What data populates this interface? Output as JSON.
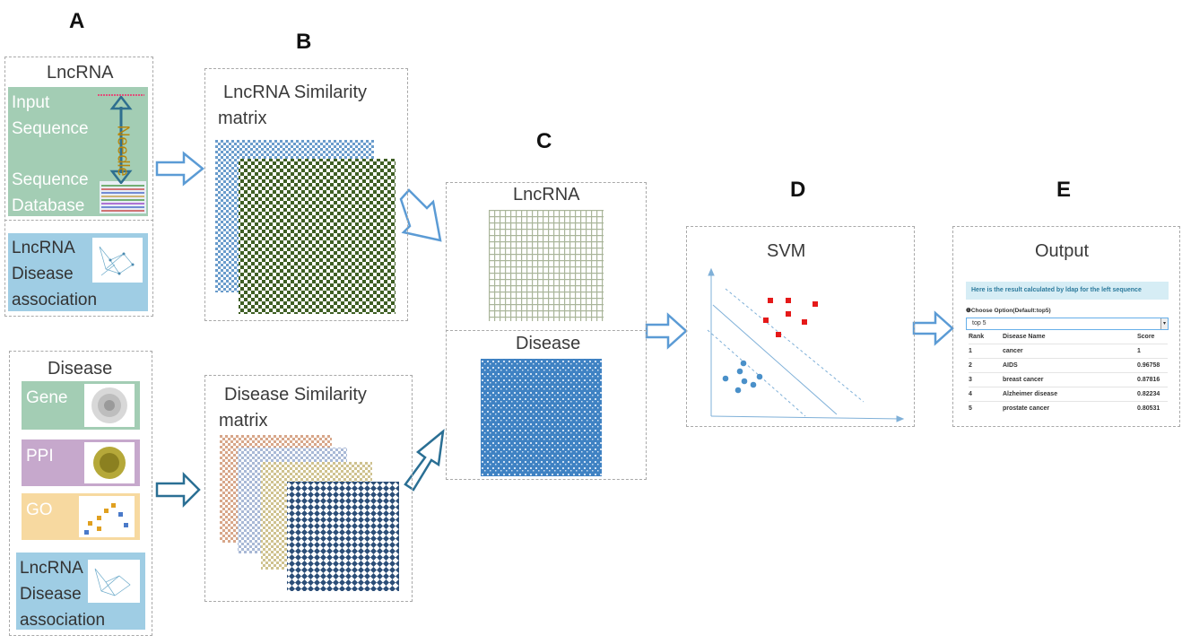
{
  "panels": {
    "a": {
      "letter": "A",
      "lncrna_title": "LncRNA",
      "input_line1": "Input",
      "input_line2": "Sequence",
      "db_line1": "Sequence",
      "db_line2": "Database",
      "needle_label": "Needle",
      "assoc_line1": "LncRNA",
      "assoc_line2": "Disease",
      "assoc_line3": "association",
      "disease_title": "Disease",
      "gene_label": "Gene",
      "ppi_label": "PPI",
      "go_label": "GO",
      "assoc2_line1": "LncRNA",
      "assoc2_line2": "Disease",
      "assoc2_line3": "association"
    },
    "b": {
      "letter": "B",
      "lnc_sim_line1": "LncRNA Similarity",
      "lnc_sim_line2": "matrix",
      "dis_sim_line1": "Disease Similarity",
      "dis_sim_line2": "matrix"
    },
    "c": {
      "letter": "C",
      "lncrna_label": "LncRNA",
      "disease_label": "Disease"
    },
    "d": {
      "letter": "D",
      "svm_label": "SVM"
    },
    "e": {
      "letter": "E",
      "output_title": "Output",
      "banner": "Here is the result calculated by ldap for the left sequence",
      "choose_option": "❶Choose Option(Default:top5)",
      "select_value": "top 5",
      "columns": [
        "Rank",
        "Disease Name",
        "Score"
      ],
      "rows": [
        {
          "rank": "1",
          "name": "cancer",
          "score": "1"
        },
        {
          "rank": "2",
          "name": "AIDS",
          "score": "0.96758"
        },
        {
          "rank": "3",
          "name": "breast cancer",
          "score": "0.87816"
        },
        {
          "rank": "4",
          "name": "Alzheimer disease",
          "score": "0.82234"
        },
        {
          "rank": "5",
          "name": "prostate cancer",
          "score": "0.80531"
        }
      ]
    }
  },
  "colors": {
    "green_box": "#a3cdb4",
    "blue_box": "#9fcde4",
    "purple_box": "#c6a8cc",
    "yellow_box": "#f7d9a0",
    "arrow": "#5b9bd5",
    "dark_green": "#3f5f24",
    "matrix_blue": "#3f82c3",
    "svm_red": "#e51919",
    "svm_blue": "#4a90c9"
  }
}
